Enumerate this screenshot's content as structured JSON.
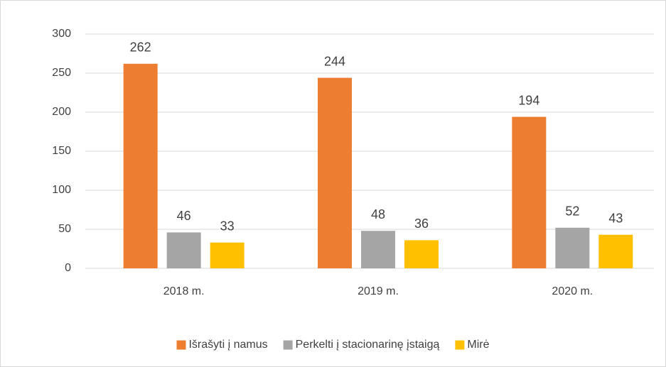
{
  "chart_data": {
    "type": "bar",
    "categories": [
      "2018 m.",
      "2019 m.",
      "2020 m."
    ],
    "series": [
      {
        "name": "Išrašyti į namus",
        "color": "#ed7d31",
        "values": [
          262,
          244,
          194
        ]
      },
      {
        "name": "Perkelti į stacionarinę įstaigą",
        "color": "#a5a5a5",
        "values": [
          46,
          48,
          52
        ]
      },
      {
        "name": "Mirė",
        "color": "#ffc000",
        "values": [
          33,
          36,
          43
        ]
      }
    ],
    "ylim": [
      0,
      300
    ],
    "yticks": [
      0,
      50,
      100,
      150,
      200,
      250,
      300
    ],
    "grid": true,
    "legend": "bottom"
  }
}
